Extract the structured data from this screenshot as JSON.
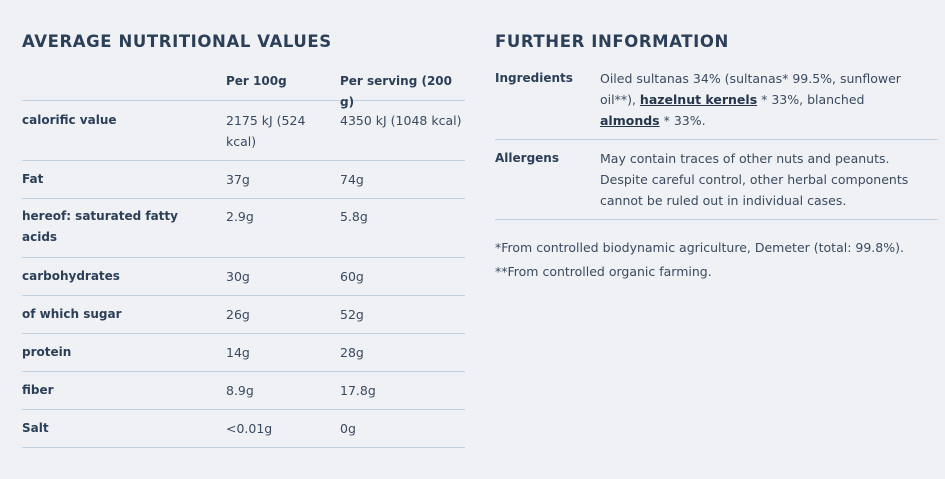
{
  "nutrition": {
    "title": "AVERAGE NUTRITIONAL VALUES",
    "headers": [
      "",
      "Per 100g",
      "Per serving (200 g)"
    ],
    "rows": [
      {
        "label": "calorific value",
        "per100": "2175 kJ (524 kcal)",
        "serving": "4350 kJ (1048 kcal)"
      },
      {
        "label": "Fat",
        "per100": "37g",
        "serving": "74g"
      },
      {
        "label": "hereof: saturated fatty acids",
        "per100": "2.9g",
        "serving": "5.8g"
      },
      {
        "label": "carbohydrates",
        "per100": "30g",
        "serving": "60g"
      },
      {
        "label": "of which sugar",
        "per100": "26g",
        "serving": "52g"
      },
      {
        "label": "protein",
        "per100": "14g",
        "serving": "28g"
      },
      {
        "label": "fiber",
        "per100": "8.9g",
        "serving": "17.8g"
      },
      {
        "label": "Salt",
        "per100": "<0.01g",
        "serving": "0g"
      }
    ]
  },
  "further": {
    "title": "FURTHER INFORMATION",
    "ingredients_label": "Ingredients",
    "ingredients_part1": "Oiled sultanas 34% (sultanas* 99.5%, sunflower oil**), ",
    "ingredients_link1": "hazelnut kernels",
    "ingredients_part2": " * 33%, blanched ",
    "ingredients_link2": "almonds",
    "ingredients_part3": " * 33%.",
    "allergens_label": "Allergens",
    "allergens_text": "May contain traces of other nuts and peanuts. Despite careful control, other herbal components cannot be ruled out in individual cases.",
    "footnote1": "*From controlled biodynamic agriculture, Demeter (total: 99.8%).",
    "footnote2": "**From controlled organic farming."
  }
}
